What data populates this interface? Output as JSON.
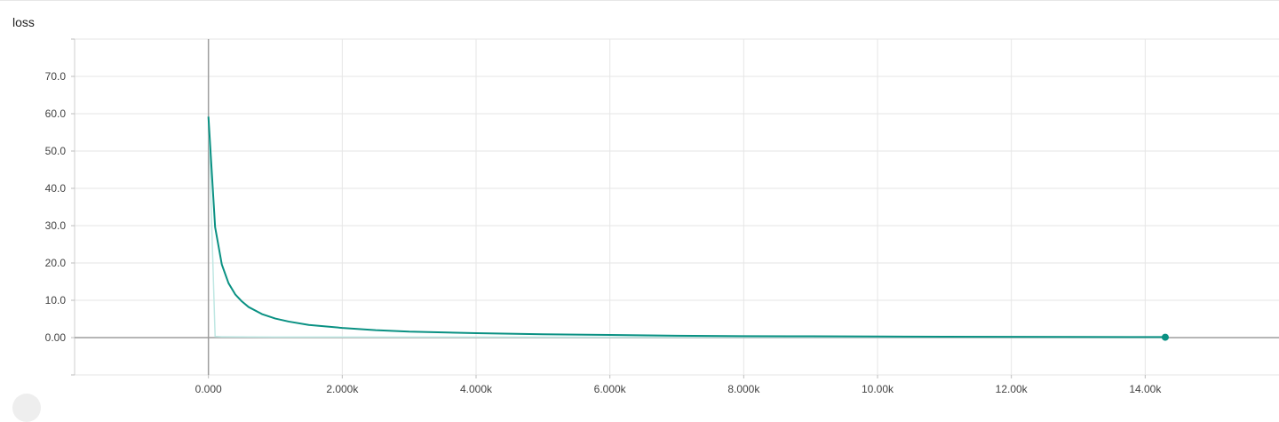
{
  "chart_data": {
    "type": "line",
    "title": "loss",
    "xlabel": "",
    "ylabel": "",
    "xlim": [
      -2000,
      16000
    ],
    "ylim": [
      -10,
      80
    ],
    "x_ticks": [
      0,
      2000,
      4000,
      6000,
      8000,
      10000,
      12000,
      14000
    ],
    "x_tick_labels": [
      "0.000",
      "2.000k",
      "4.000k",
      "6.000k",
      "8.000k",
      "10.00k",
      "12.00k",
      "14.00k"
    ],
    "y_ticks": [
      0,
      10,
      20,
      30,
      40,
      50,
      60,
      70
    ],
    "y_tick_labels": [
      "0.00",
      "10.0",
      "20.0",
      "30.0",
      "40.0",
      "50.0",
      "60.0",
      "70.0"
    ],
    "grid": true,
    "colors": {
      "smoothed": "#0a9183",
      "raw": "#bfe7e3",
      "grid": "#e6e6e6",
      "axis": "#9e9e9e"
    },
    "series": [
      {
        "role": "smoothed",
        "x": [
          0,
          100,
          200,
          300,
          400,
          500,
          600,
          800,
          1000,
          1200,
          1500,
          2000,
          2500,
          3000,
          4000,
          5000,
          6000,
          7000,
          8000,
          9000,
          10000,
          11000,
          12000,
          13000,
          14300
        ],
        "y": [
          59.2,
          29.6,
          19.6,
          14.6,
          11.6,
          9.7,
          8.2,
          6.3,
          5.1,
          4.3,
          3.4,
          2.6,
          2.0,
          1.6,
          1.2,
          0.9,
          0.7,
          0.5,
          0.4,
          0.35,
          0.3,
          0.25,
          0.2,
          0.18,
          0.15
        ]
      },
      {
        "role": "raw",
        "x": [
          0,
          100,
          200,
          1000,
          14300
        ],
        "y": [
          59.2,
          0.3,
          0.2,
          0.15,
          0.1
        ]
      }
    ],
    "last_point": {
      "x": 14300,
      "y": 0.1
    }
  }
}
